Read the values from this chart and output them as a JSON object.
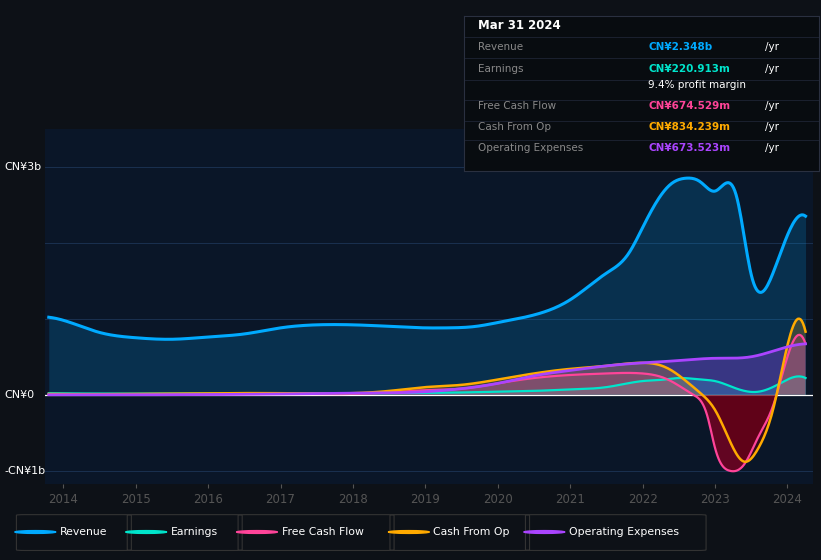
{
  "bg_color": "#0d1117",
  "chart_bg": "#0a1628",
  "ylabel_3b": "CN¥3b",
  "ylabel_0": "CN¥0",
  "ylabel_neg1b": "-CN¥1b",
  "revenue_color": "#00aaff",
  "earnings_color": "#00e5cc",
  "fcf_color": "#ff4499",
  "cashop_color": "#ffaa00",
  "opex_color": "#aa44ff",
  "legend_labels": [
    "Revenue",
    "Earnings",
    "Free Cash Flow",
    "Cash From Op",
    "Operating Expenses"
  ],
  "tooltip_title": "Mar 31 2024",
  "rev_label": "Revenue",
  "earn_label": "Earnings",
  "margin_label": "9.4% profit margin",
  "fcf_label": "Free Cash Flow",
  "cop_label": "Cash From Op",
  "opex_label": "Operating Expenses",
  "rev_val": "CN¥2.348b",
  "earn_val": "CN¥220.913m",
  "fcf_val": "CN¥674.529m",
  "cop_val": "CN¥834.239m",
  "opex_val": "CN¥673.523m"
}
